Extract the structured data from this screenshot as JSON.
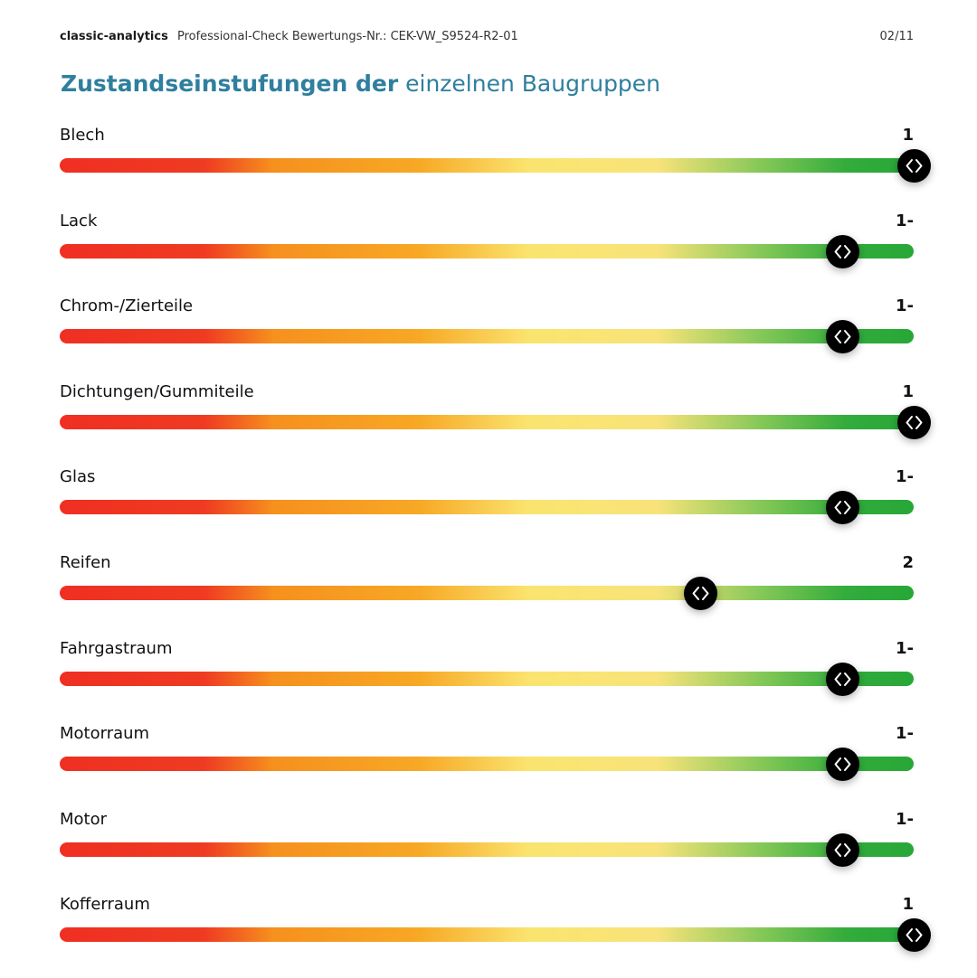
{
  "header": {
    "brand": "classic-analytics",
    "report_id": "Professional-Check Bewertungs-Nr.: CEK-VW_S9524-R2-01",
    "page_number": "02/11"
  },
  "title": {
    "strong": "Zustandseinstufungen der",
    "rest": " einzelnen Baugruppen",
    "color": "#2f7f9e"
  },
  "ratings": [
    {
      "label": "Blech",
      "grade": "1",
      "level": 1.0
    },
    {
      "label": "Lack",
      "grade": "1-",
      "level": 0.917
    },
    {
      "label": "Chrom-/Zierteile",
      "grade": "1-",
      "level": 0.917
    },
    {
      "label": "Dichtungen/Gummiteile",
      "grade": "1",
      "level": 1.0
    },
    {
      "label": "Glas",
      "grade": "1-",
      "level": 0.917
    },
    {
      "label": "Reifen",
      "grade": "2",
      "level": 0.75
    },
    {
      "label": "Fahrgastraum",
      "grade": "1-",
      "level": 0.917
    },
    {
      "label": "Motorraum",
      "grade": "1-",
      "level": 0.917
    },
    {
      "label": "Motor",
      "grade": "1-",
      "level": 0.917
    },
    {
      "label": "Kofferraum",
      "grade": "1",
      "level": 1.0
    }
  ],
  "handle_icon": "chevron-left-right-icon"
}
